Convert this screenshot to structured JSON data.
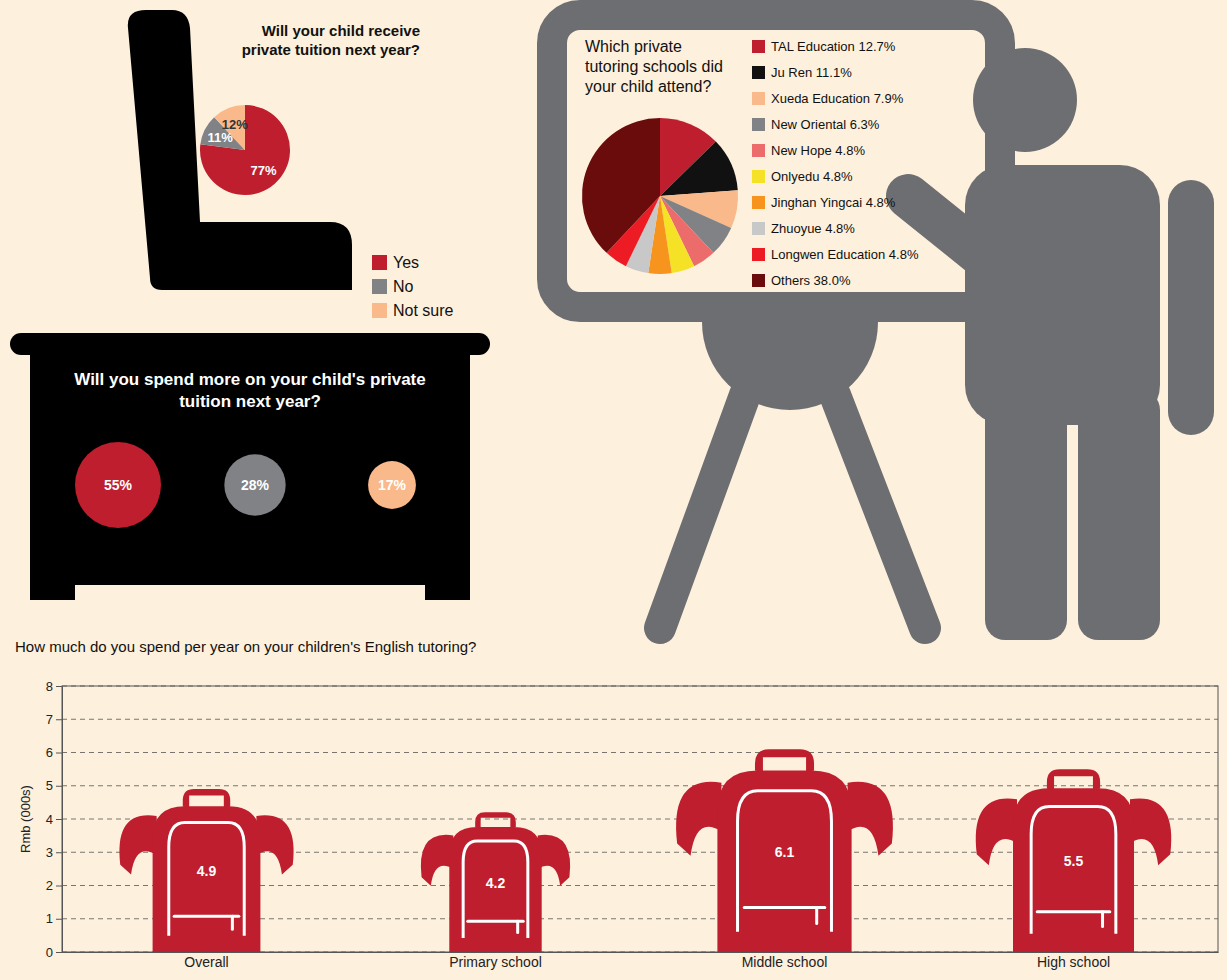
{
  "chart_data": [
    {
      "type": "pie",
      "title": "Will your child receive private tuition next year?",
      "categories": [
        "Yes",
        "No",
        "Not sure"
      ],
      "values": [
        77,
        11,
        12
      ],
      "value_labels": [
        "77%",
        "11%",
        "12%"
      ],
      "colors": [
        "#be1e2d",
        "#808285",
        "#f9b98a"
      ],
      "data_labels": true,
      "legend": "bottom right"
    },
    {
      "type": "bubble",
      "title": "Will you spend more on your child's private tuition next year?",
      "categories": [
        null,
        null,
        null
      ],
      "values": [
        55,
        28,
        17
      ],
      "value_labels": [
        "55%",
        "28%",
        "17%"
      ],
      "colors": [
        "#be1e2d",
        "#808285",
        "#f9b98a"
      ],
      "data_labels": true
    },
    {
      "type": "pie",
      "title": "Which private tutoring schools did your child attend?",
      "categories": [
        "TAL Education 12.7%",
        "Ju Ren 11.1%",
        "Xueda Education 7.9%",
        "New Oriental 6.3%",
        "New Hope 4.8%",
        "Onlyedu 4.8%",
        "Jinghan Yingcai 4.8%",
        "Zhuoyue 4.8%",
        "Longwen Education 4.8%",
        "Others 38.0%"
      ],
      "values": [
        12.7,
        11.1,
        7.9,
        6.3,
        4.8,
        4.8,
        4.8,
        4.8,
        4.8,
        38.0
      ],
      "colors": [
        "#be1e2d",
        "#111111",
        "#f9b98a",
        "#808285",
        "#ec6b6b",
        "#f5e125",
        "#f7941d",
        "#c8c8c8",
        "#ed1c24",
        "#6b0c0c"
      ],
      "data_labels": false,
      "legend": "right"
    },
    {
      "type": "bar",
      "title": "How much do you spend per year on your children's English tutoring?",
      "ylabel": "Rmb (000s)",
      "categories": [
        "Overall",
        "Primary school",
        "Middle school",
        "High school"
      ],
      "values": [
        4.9,
        4.2,
        6.1,
        5.5
      ],
      "color": "#be1e2d",
      "ylim": [
        0,
        8
      ],
      "yticks": [
        0,
        1,
        2,
        3,
        4,
        5,
        6,
        7,
        8
      ],
      "grid": true,
      "data_labels": true
    }
  ]
}
